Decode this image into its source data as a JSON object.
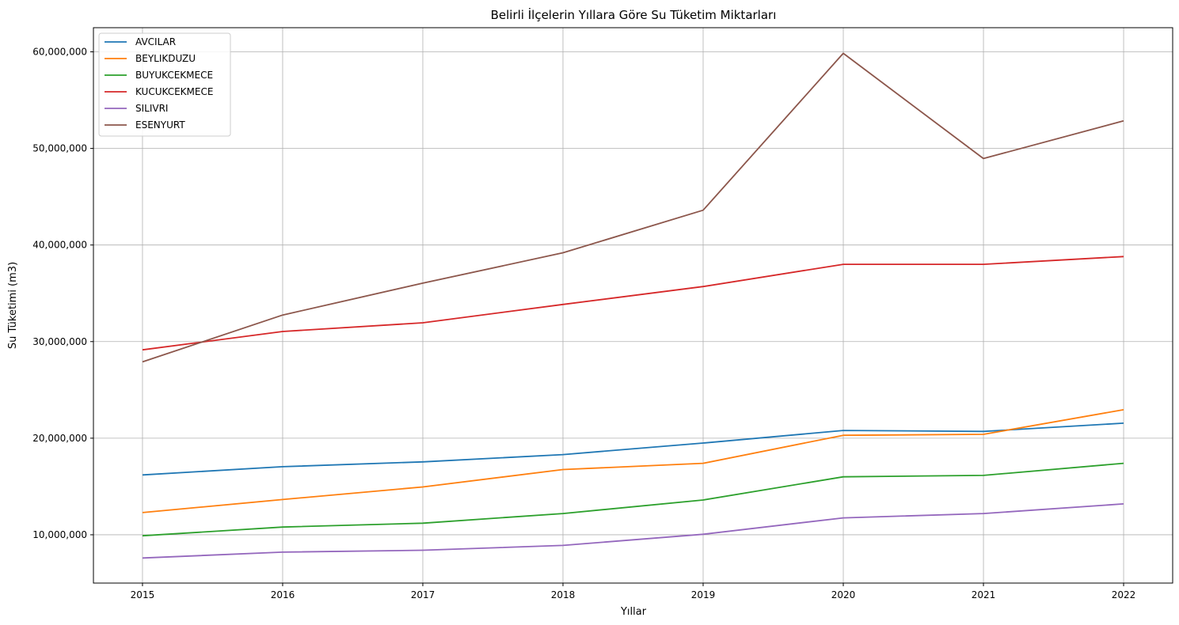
{
  "chart_data": {
    "type": "line",
    "title": "Belirli İlçelerin Yıllara Göre Su Tüketim Miktarları",
    "xlabel": "Yıllar",
    "ylabel": "Su Tüketimi (m3)",
    "x": [
      2015,
      2016,
      2017,
      2018,
      2019,
      2020,
      2021,
      2022
    ],
    "xlim": [
      2014.65,
      2022.35
    ],
    "ylim": [
      5000000,
      62500000
    ],
    "yticks": [
      10000000,
      20000000,
      30000000,
      40000000,
      50000000,
      60000000
    ],
    "ytick_labels": [
      "10,000,000",
      "20,000,000",
      "30,000,000",
      "40,000,000",
      "50,000,000",
      "60,000,000"
    ],
    "xtick_labels": [
      "2015",
      "2016",
      "2017",
      "2018",
      "2019",
      "2020",
      "2021",
      "2022"
    ],
    "grid": true,
    "legend_position": "upper-left",
    "series": [
      {
        "name": "AVCILAR",
        "color": "#1f77b4",
        "values": [
          16200000,
          17050000,
          17550000,
          18300000,
          19500000,
          20800000,
          20700000,
          21550000
        ]
      },
      {
        "name": "BEYLIKDUZU",
        "color": "#ff7f0e",
        "values": [
          12300000,
          13650000,
          14950000,
          16750000,
          17400000,
          20300000,
          20400000,
          22950000
        ]
      },
      {
        "name": "BUYUKCEKMECE",
        "color": "#2ca02c",
        "values": [
          9900000,
          10800000,
          11200000,
          12200000,
          13600000,
          16000000,
          16150000,
          17400000
        ]
      },
      {
        "name": "KUCUKCEKMECE",
        "color": "#d62728",
        "values": [
          29150000,
          31050000,
          31950000,
          33850000,
          35700000,
          38000000,
          38000000,
          38800000
        ]
      },
      {
        "name": "SILIVRI",
        "color": "#9467bd",
        "values": [
          7600000,
          8200000,
          8400000,
          8900000,
          10050000,
          11750000,
          12200000,
          13200000
        ]
      },
      {
        "name": "ESENYURT",
        "color": "#8c564b",
        "values": [
          27900000,
          32750000,
          36050000,
          39200000,
          43600000,
          59850000,
          48950000,
          52850000
        ]
      }
    ]
  }
}
